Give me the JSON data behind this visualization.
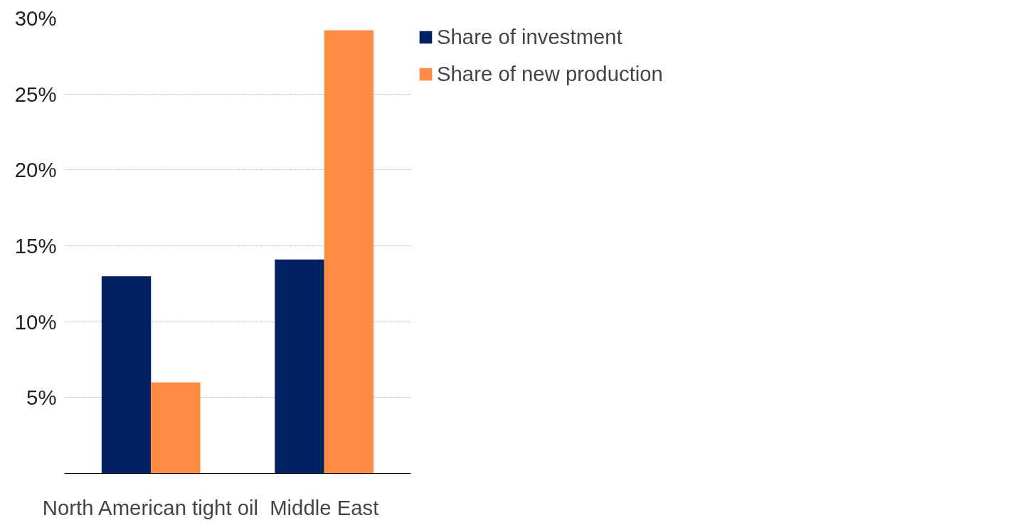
{
  "chart_data": {
    "type": "bar",
    "categories": [
      "North American tight oil",
      "Middle East"
    ],
    "series": [
      {
        "name": "Share of investment",
        "color": "#002060",
        "values": [
          13.0,
          14.1
        ]
      },
      {
        "name": "Share of new production",
        "color": "#ff8c42",
        "values": [
          6.0,
          29.2
        ]
      }
    ],
    "ylim": [
      0,
      30
    ],
    "yticks": [
      {
        "value": 5,
        "label": "5%"
      },
      {
        "value": 10,
        "label": "10%"
      },
      {
        "value": 15,
        "label": "15%"
      },
      {
        "value": 20,
        "label": "20%"
      },
      {
        "value": 25,
        "label": "25%"
      },
      {
        "value": 30,
        "label": "30%"
      }
    ],
    "grid": "y",
    "legend": "top right"
  }
}
